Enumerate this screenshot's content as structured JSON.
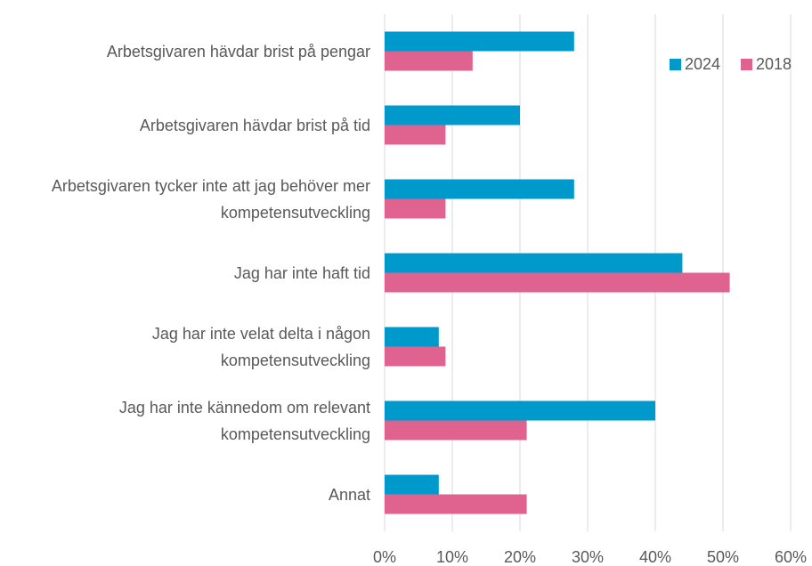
{
  "chart_data": {
    "type": "barh",
    "categories": [
      "Arbetsgivaren hävdar brist på pengar",
      "Arbetsgivaren hävdar brist på tid",
      "Arbetsgivaren tycker inte att jag behöver mer kompetensutveckling",
      "Jag har inte haft tid",
      "Jag har inte velat delta i någon kompetensutveckling",
      "Jag har inte kännedom om relevant kompetensutveckling",
      "Annat"
    ],
    "series": [
      {
        "name": "2024",
        "color": "#0099cc",
        "values": [
          28,
          20,
          28,
          44,
          8,
          40,
          8
        ]
      },
      {
        "name": "2018",
        "color": "#e0628f",
        "values": [
          13,
          9,
          9,
          51,
          9,
          21,
          21
        ]
      }
    ],
    "xlim": [
      0,
      60
    ],
    "xticks": [
      {
        "value": 0,
        "label": "0%"
      },
      {
        "value": 10,
        "label": "10%"
      },
      {
        "value": 20,
        "label": "20%"
      },
      {
        "value": 30,
        "label": "30%"
      },
      {
        "value": 40,
        "label": "40%"
      },
      {
        "value": 50,
        "label": "50%"
      },
      {
        "value": 60,
        "label": "60%"
      }
    ],
    "grid": true,
    "legend": "top-right"
  }
}
